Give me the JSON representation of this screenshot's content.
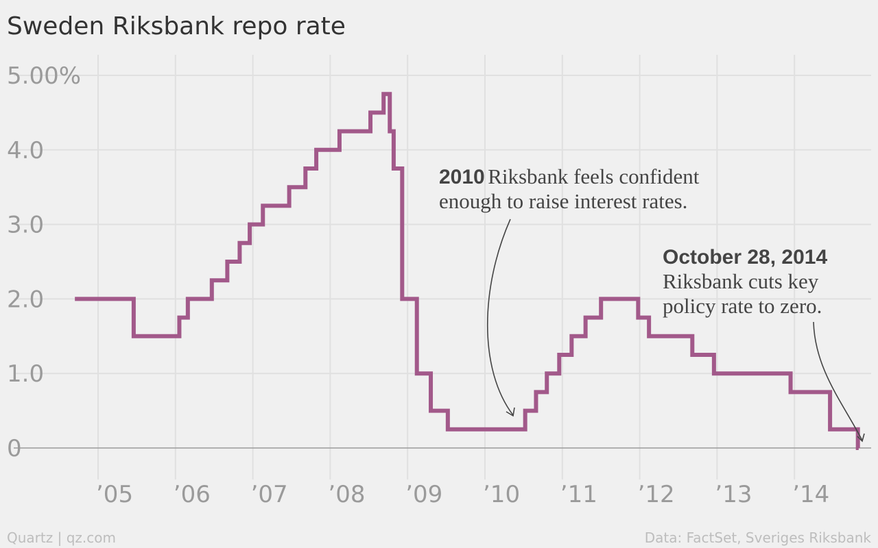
{
  "chart_data": {
    "type": "line",
    "title": "Sweden Riksbank repo rate",
    "xlabel": "",
    "ylabel": "",
    "xlim": [
      2004.6,
      2015.0
    ],
    "ylim": [
      0,
      5.0
    ],
    "grid": true,
    "y_ticks": [
      {
        "value": 5.0,
        "label": "5.00%"
      },
      {
        "value": 4.0,
        "label": "4.0"
      },
      {
        "value": 3.0,
        "label": "3.0"
      },
      {
        "value": 2.0,
        "label": "2.0"
      },
      {
        "value": 1.0,
        "label": "1.0"
      },
      {
        "value": 0,
        "label": "0"
      }
    ],
    "x_ticks": [
      {
        "value": 2005,
        "label": "’05"
      },
      {
        "value": 2006,
        "label": "’06"
      },
      {
        "value": 2007,
        "label": "’07"
      },
      {
        "value": 2008,
        "label": "’08"
      },
      {
        "value": 2009,
        "label": "’09"
      },
      {
        "value": 2010,
        "label": "’10"
      },
      {
        "value": 2011,
        "label": "’11"
      },
      {
        "value": 2012,
        "label": "’12"
      },
      {
        "value": 2013,
        "label": "’13"
      },
      {
        "value": 2014,
        "label": "’14"
      }
    ],
    "series": [
      {
        "color": "#a2598a",
        "x": [
          2004.7,
          2005.46,
          2006.05,
          2006.16,
          2006.47,
          2006.67,
          2006.83,
          2006.96,
          2007.13,
          2007.47,
          2007.68,
          2007.82,
          2008.12,
          2008.52,
          2008.69,
          2008.77,
          2008.82,
          2008.93,
          2009.12,
          2009.3,
          2009.52,
          2010.52,
          2010.66,
          2010.8,
          2010.96,
          2011.12,
          2011.3,
          2011.5,
          2011.98,
          2012.12,
          2012.68,
          2012.96,
          2013.95,
          2014.46,
          2014.82
        ],
        "values": [
          2.0,
          1.5,
          1.75,
          2.0,
          2.25,
          2.5,
          2.75,
          3.0,
          3.25,
          3.5,
          3.75,
          4.0,
          4.25,
          4.5,
          4.75,
          4.25,
          3.75,
          2.0,
          1.0,
          0.5,
          0.25,
          0.5,
          0.75,
          1.0,
          1.25,
          1.5,
          1.75,
          2.0,
          1.75,
          1.5,
          1.25,
          1.0,
          0.75,
          0.25,
          0.0
        ],
        "step": "post",
        "end_x": 2014.83
      }
    ],
    "annotations": [
      {
        "bold": "2010",
        "lines": [
          "Riksbank feels confident",
          "enough to raise interest rates."
        ],
        "x": 2010.4,
        "y": 0.42
      },
      {
        "bold": "October 28, 2014",
        "lines": [
          "Riksbank cuts key",
          "policy rate to zero."
        ],
        "x": 2014.82,
        "y": 0.08
      }
    ]
  },
  "footer": {
    "left": "Quartz | qz.com",
    "right": "Data: FactSet, Sveriges Riksbank"
  }
}
